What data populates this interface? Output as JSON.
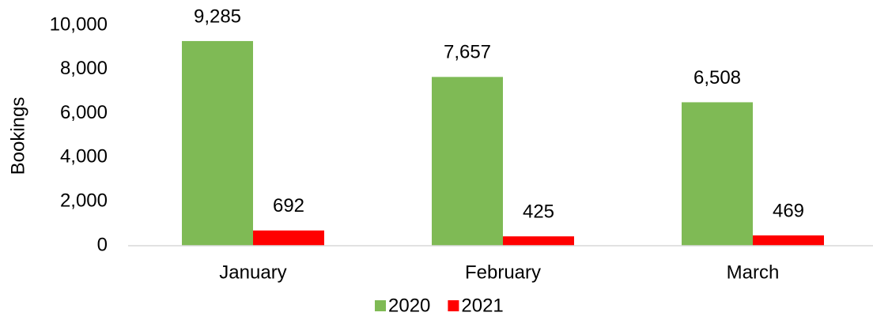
{
  "chart_data": {
    "type": "bar",
    "y_label": "Bookings",
    "categories": [
      "January",
      "February",
      "March"
    ],
    "series": [
      {
        "name": "2020",
        "color": "#7fba55",
        "values": [
          9285,
          7657,
          6508
        ],
        "value_labels": [
          "9,285",
          "7,657",
          "6,508"
        ]
      },
      {
        "name": "2021",
        "color": "#ff0000",
        "values": [
          692,
          425,
          469
        ],
        "value_labels": [
          "692",
          "425",
          "469"
        ]
      }
    ],
    "ylim": [
      0,
      10000
    ],
    "yticks": [
      0,
      {
        "value": 2000,
        "label": "2,000"
      },
      {
        "value": 4000,
        "label": "4,000"
      },
      {
        "value": 6000,
        "label": "6,000"
      },
      {
        "value": 8000,
        "label": "8,000"
      },
      {
        "value": 10000,
        "label": "10,000"
      }
    ],
    "grid": false,
    "legend": "bottom"
  }
}
